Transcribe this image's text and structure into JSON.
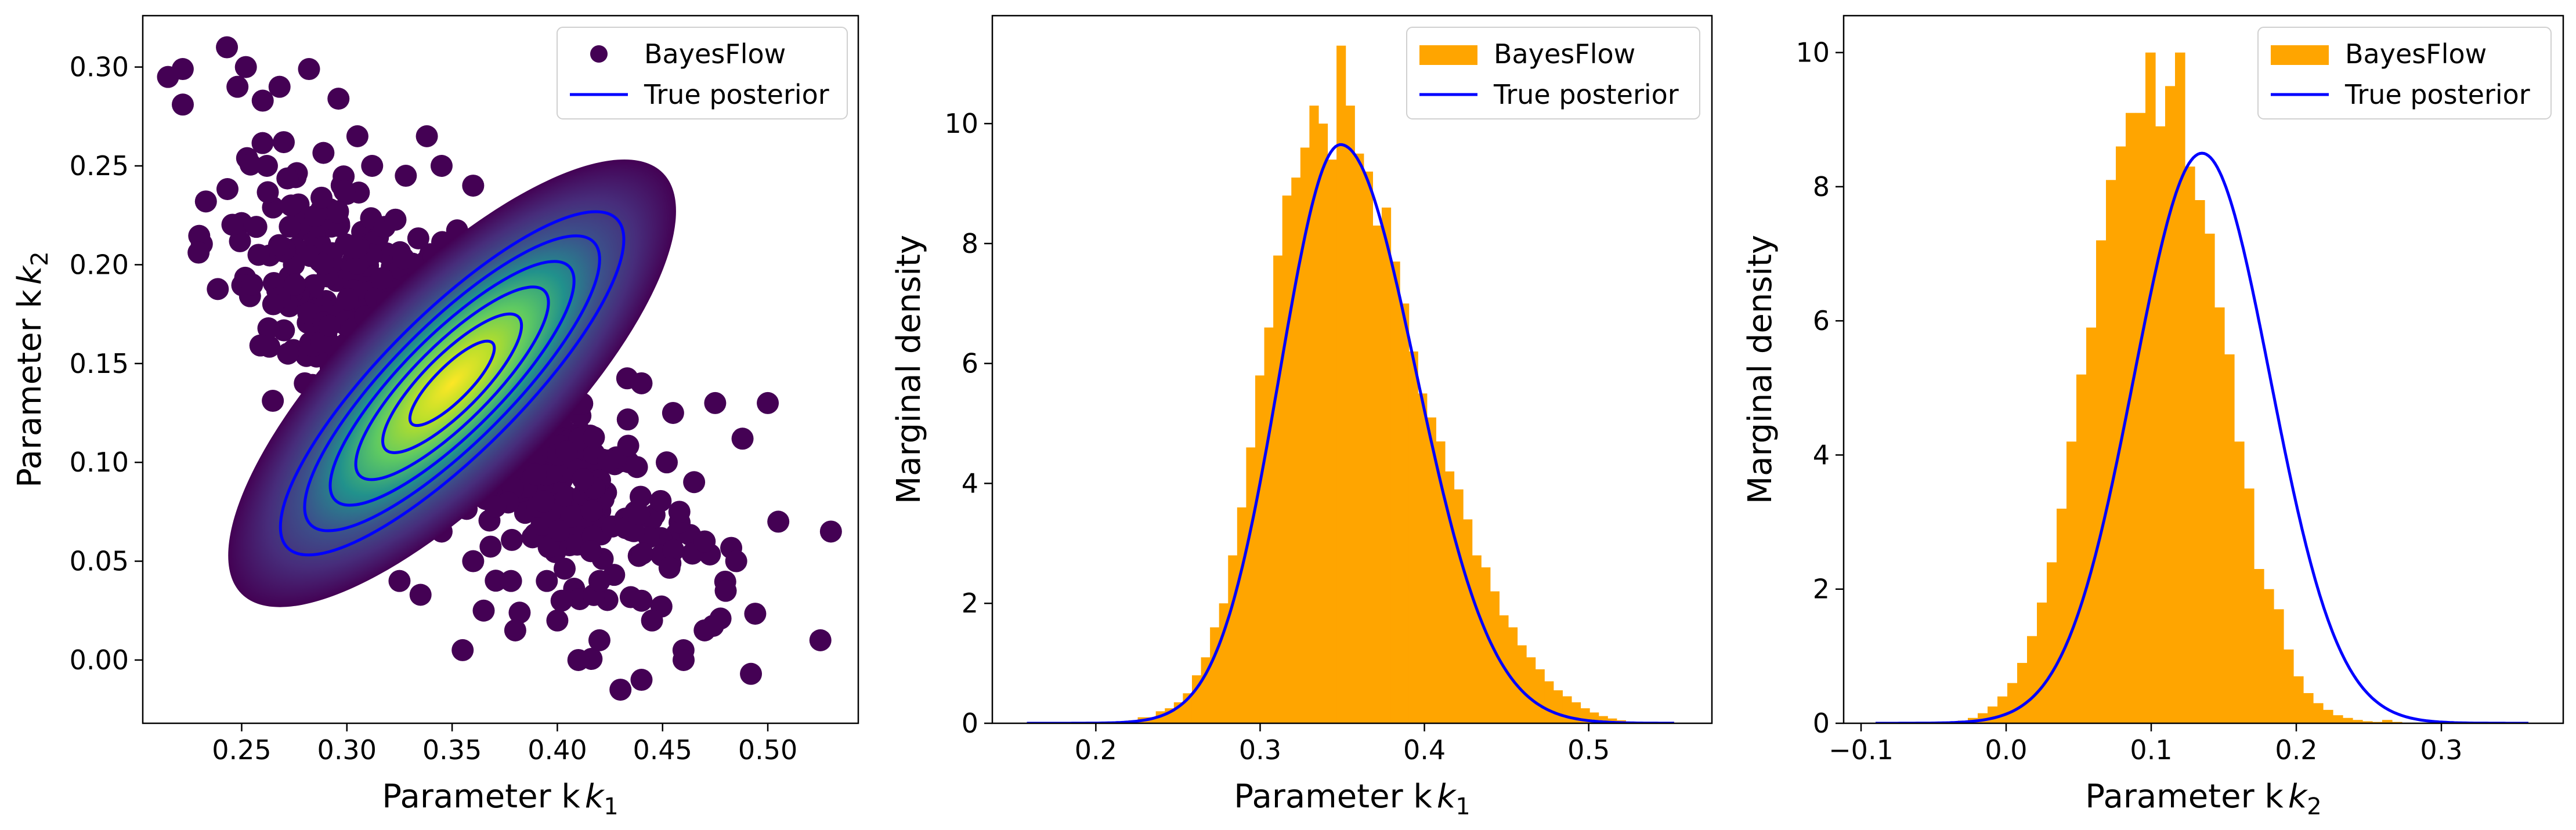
{
  "figure": {
    "panels": [
      {
        "xlabel": "Parameter k",
        "xlabel_sub": "1",
        "ylabel": "Parameter k",
        "ylabel_sub": "2"
      },
      {
        "xlabel": "Parameter k",
        "xlabel_sub": "1",
        "ylabel": "Marginal density"
      },
      {
        "xlabel": "Parameter k",
        "xlabel_sub": "2",
        "ylabel": "Marginal density"
      }
    ]
  },
  "colors": {
    "bayesflow_hist": "#FFA500",
    "true_posterior": "#0000FF",
    "scatter_low": "#440154",
    "scatter_high": "#FDE725"
  },
  "chart_data": [
    {
      "type": "scatter",
      "xlabel": "Parameter k_1",
      "ylabel": "Parameter k_2",
      "xlim": [
        0.203,
        0.543
      ],
      "ylim": [
        -0.032,
        0.326
      ],
      "xticks": [
        "0.25",
        "0.30",
        "0.35",
        "0.40",
        "0.45",
        "0.50"
      ],
      "yticks": [
        "0.00",
        "0.05",
        "0.10",
        "0.15",
        "0.20",
        "0.25",
        "0.30"
      ],
      "legend": [
        "BayesFlow",
        "True posterior"
      ],
      "legend_position": "top-right",
      "colormap": "viridis (point density)",
      "sample_cloud": {
        "mean": [
          0.35,
          0.14
        ],
        "std": [
          0.045,
          0.045
        ],
        "correlation": -0.8
      },
      "outlier_points": [
        [
          0.215,
          0.295
        ],
        [
          0.222,
          0.299
        ],
        [
          0.243,
          0.31
        ],
        [
          0.233,
          0.232
        ],
        [
          0.248,
          0.29
        ],
        [
          0.252,
          0.3
        ],
        [
          0.26,
          0.283
        ],
        [
          0.268,
          0.29
        ],
        [
          0.282,
          0.299
        ],
        [
          0.296,
          0.284
        ],
        [
          0.262,
          0.25
        ],
        [
          0.27,
          0.262
        ],
        [
          0.305,
          0.265
        ],
        [
          0.312,
          0.25
        ],
        [
          0.258,
          0.205
        ],
        [
          0.255,
          0.19
        ],
        [
          0.272,
          0.155
        ],
        [
          0.265,
          0.18
        ],
        [
          0.285,
          0.115
        ],
        [
          0.3,
          0.08
        ],
        [
          0.31,
          0.06
        ],
        [
          0.32,
          0.075
        ],
        [
          0.325,
          0.04
        ],
        [
          0.335,
          0.033
        ],
        [
          0.355,
          0.005
        ],
        [
          0.365,
          0.025
        ],
        [
          0.378,
          0.04
        ],
        [
          0.38,
          0.015
        ],
        [
          0.395,
          0.04
        ],
        [
          0.4,
          0.02
        ],
        [
          0.41,
          0.0
        ],
        [
          0.42,
          0.01
        ],
        [
          0.43,
          -0.015
        ],
        [
          0.44,
          -0.01
        ],
        [
          0.445,
          0.02
        ],
        [
          0.46,
          0.0
        ],
        [
          0.47,
          0.015
        ],
        [
          0.48,
          0.035
        ],
        [
          0.492,
          -0.007
        ],
        [
          0.505,
          0.07
        ],
        [
          0.525,
          0.01
        ],
        [
          0.53,
          0.065
        ],
        [
          0.5,
          0.13
        ],
        [
          0.488,
          0.112
        ],
        [
          0.475,
          0.13
        ],
        [
          0.465,
          0.09
        ],
        [
          0.458,
          0.075
        ],
        [
          0.452,
          0.1
        ],
        [
          0.47,
          0.06
        ],
        [
          0.485,
          0.05
        ],
        [
          0.39,
          0.2
        ],
        [
          0.385,
          0.185
        ],
        [
          0.372,
          0.215
        ],
        [
          0.36,
          0.24
        ],
        [
          0.345,
          0.25
        ],
        [
          0.338,
          0.265
        ],
        [
          0.328,
          0.245
        ],
        [
          0.4,
          0.17
        ],
        [
          0.42,
          0.16
        ],
        [
          0.44,
          0.14
        ],
        [
          0.455,
          0.125
        ],
        [
          0.44,
          0.03
        ],
        [
          0.42,
          0.04
        ],
        [
          0.402,
          0.03
        ],
        [
          0.36,
          0.05
        ],
        [
          0.345,
          0.065
        ],
        [
          0.33,
          0.09
        ],
        [
          0.3,
          0.1
        ],
        [
          0.29,
          0.12
        ],
        [
          0.28,
          0.14
        ]
      ],
      "contours": [
        {
          "center": [
            0.35,
            0.14
          ],
          "semi_major": 0.114,
          "semi_minor": 0.034,
          "angle_deg": -45
        },
        {
          "center": [
            0.35,
            0.14
          ],
          "semi_major": 0.098,
          "semi_minor": 0.029,
          "angle_deg": -45
        },
        {
          "center": [
            0.35,
            0.14
          ],
          "semi_major": 0.081,
          "semi_minor": 0.024,
          "angle_deg": -45
        },
        {
          "center": [
            0.35,
            0.14
          ],
          "semi_major": 0.064,
          "semi_minor": 0.019,
          "angle_deg": -45
        },
        {
          "center": [
            0.35,
            0.14
          ],
          "semi_major": 0.046,
          "semi_minor": 0.014,
          "angle_deg": -45
        },
        {
          "center": [
            0.35,
            0.14
          ],
          "semi_major": 0.028,
          "semi_minor": 0.0085,
          "angle_deg": -45
        }
      ]
    },
    {
      "type": "histogram",
      "xlabel": "Parameter k_1",
      "ylabel": "Marginal density",
      "xlim": [
        0.137,
        0.575
      ],
      "ylim": [
        0,
        11.8
      ],
      "xticks": [
        "0.2",
        "0.3",
        "0.4",
        "0.5"
      ],
      "yticks": [
        "0",
        "2",
        "4",
        "6",
        "8",
        "10"
      ],
      "legend": [
        "BayesFlow",
        "True posterior"
      ],
      "legend_position": "top-right",
      "bins": {
        "start": 0.22,
        "width": 0.0055,
        "heights": [
          0.05,
          0.1,
          0.1,
          0.2,
          0.25,
          0.35,
          0.5,
          0.8,
          1.1,
          1.6,
          2.0,
          2.8,
          3.6,
          4.6,
          5.8,
          6.6,
          7.8,
          8.8,
          9.1,
          9.6,
          10.3,
          10.0,
          9.4,
          11.3,
          10.3,
          9.5,
          9.2,
          8.3,
          8.6,
          7.7,
          7.0,
          6.2,
          5.5,
          5.1,
          4.7,
          4.2,
          3.9,
          3.4,
          2.8,
          2.6,
          2.2,
          1.8,
          1.6,
          1.3,
          1.1,
          0.9,
          0.7,
          0.55,
          0.45,
          0.35,
          0.25,
          0.18,
          0.12,
          0.08,
          0.05,
          0.03
        ]
      },
      "true_posterior": {
        "mode": 0.349,
        "peak": 9.65,
        "sigma_left": 0.037,
        "sigma_right": 0.046,
        "x_range": [
          0.158,
          0.552
        ]
      }
    },
    {
      "type": "histogram",
      "xlabel": "Parameter k_2",
      "ylabel": "Marginal density",
      "xlim": [
        -0.112,
        0.384
      ],
      "ylim": [
        0,
        10.55
      ],
      "xticks": [
        "−0.1",
        "0.0",
        "0.1",
        "0.2",
        "0.3"
      ],
      "yticks": [
        "0",
        "2",
        "4",
        "6",
        "8",
        "10"
      ],
      "legend": [
        "BayesFlow",
        "True posterior"
      ],
      "legend_position": "top-right",
      "bins": {
        "start": -0.04,
        "width": 0.0068,
        "heights": [
          0.02,
          0.04,
          0.08,
          0.15,
          0.25,
          0.4,
          0.6,
          0.9,
          1.3,
          1.8,
          2.4,
          3.2,
          4.2,
          5.2,
          5.9,
          7.2,
          8.1,
          8.6,
          9.1,
          9.1,
          10.0,
          8.9,
          9.5,
          10.0,
          8.3,
          7.8,
          7.3,
          6.2,
          5.5,
          4.2,
          3.5,
          2.3,
          2.0,
          1.7,
          1.1,
          0.7,
          0.45,
          0.3,
          0.2,
          0.12,
          0.08,
          0.05,
          0.03,
          0.02,
          0.05,
          0.02
        ]
      },
      "true_posterior": {
        "mode": 0.135,
        "peak": 8.5,
        "sigma": 0.047,
        "x_range": [
          -0.09,
          0.36
        ]
      }
    }
  ]
}
